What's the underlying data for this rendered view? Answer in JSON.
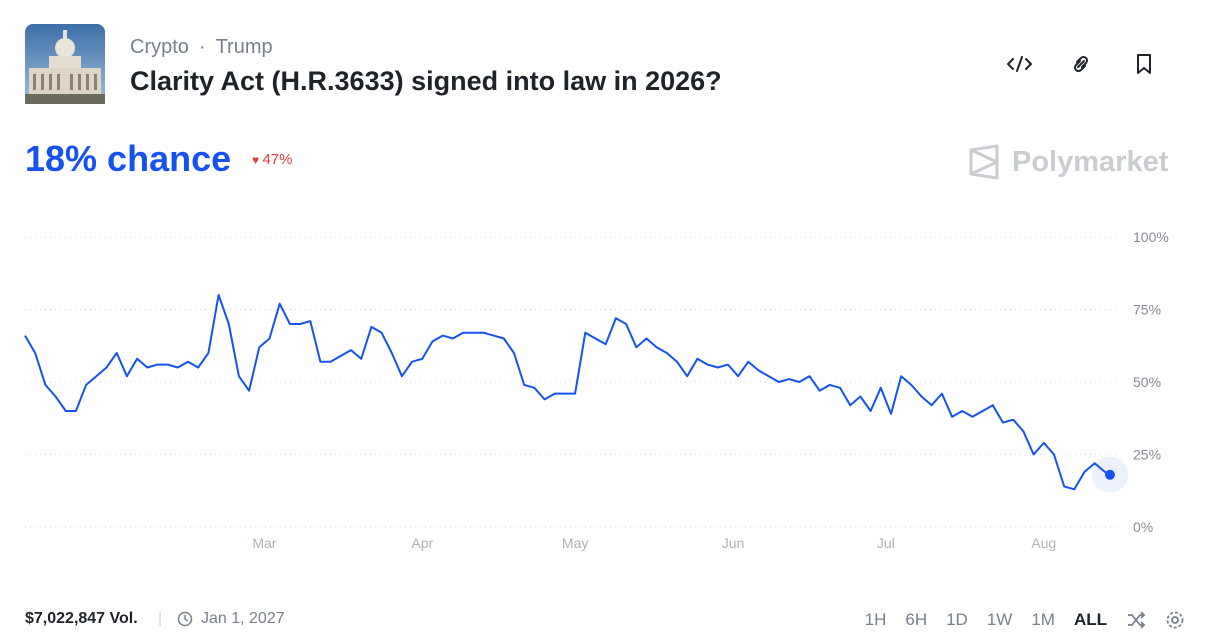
{
  "header": {
    "breadcrumbs": [
      "Crypto",
      "Trump"
    ],
    "title": "Clarity Act (H.R.3633) signed into law in 2026?"
  },
  "chance": {
    "label": "18% chance",
    "change": "47%"
  },
  "brand": "Polymarket",
  "chart_data": {
    "type": "line",
    "x": [
      13,
      15,
      17,
      19,
      21,
      23,
      25,
      27,
      29,
      31,
      33,
      35,
      37,
      39,
      41,
      43,
      45,
      47,
      49,
      51,
      53,
      55,
      57,
      59,
      61,
      63,
      65,
      67,
      69,
      71,
      73,
      75,
      77,
      79,
      81,
      83,
      85,
      87,
      89,
      91,
      93,
      95,
      97,
      99,
      101,
      103,
      105,
      107,
      109,
      111,
      113,
      115,
      117,
      119,
      121,
      123,
      125,
      127,
      129,
      131,
      133,
      135,
      137,
      139,
      141,
      143,
      145,
      147,
      149,
      151,
      153,
      155,
      157,
      159,
      161,
      163,
      165,
      167,
      169,
      171,
      173,
      175,
      177,
      179,
      181,
      183,
      185,
      187,
      189,
      191,
      193,
      195,
      197,
      199,
      201,
      203,
      205,
      207,
      209,
      211,
      213,
      215,
      217,
      219,
      221,
      223,
      225,
      226
    ],
    "series": [
      {
        "color": "#1652f0",
        "values": [
          66,
          60,
          49,
          45,
          40,
          40,
          49,
          52,
          55,
          60,
          52,
          58,
          55,
          56,
          56,
          55,
          57,
          55,
          60,
          80,
          70,
          52,
          47,
          62,
          65,
          77,
          70,
          70,
          71,
          57,
          57,
          59,
          61,
          58,
          69,
          67,
          60,
          52,
          57,
          58,
          64,
          66,
          65,
          67,
          67,
          67,
          66,
          65,
          60,
          49,
          48,
          44,
          46,
          46,
          46,
          67,
          65,
          63,
          72,
          70,
          62,
          65,
          62,
          60,
          57,
          52,
          58,
          56,
          55,
          56,
          52,
          57,
          54,
          52,
          50,
          51,
          50,
          52,
          47,
          49,
          48,
          42,
          45,
          40,
          48,
          39,
          52,
          49,
          45,
          42,
          46,
          38,
          40,
          38,
          40,
          42,
          36,
          37,
          33,
          25,
          29,
          25,
          14,
          13,
          19,
          22,
          19,
          18
        ]
      }
    ],
    "xlim": [
      13,
      226
    ],
    "xticks": [
      {
        "value": 60,
        "label": "Mar"
      },
      {
        "value": 91,
        "label": "Apr"
      },
      {
        "value": 121,
        "label": "May"
      },
      {
        "value": 152,
        "label": "Jun"
      },
      {
        "value": 182,
        "label": "Jul"
      },
      {
        "value": 213,
        "label": "Aug"
      }
    ],
    "ylim": [
      0,
      100
    ],
    "yticks": [
      {
        "value": 0,
        "label": "0%"
      },
      {
        "value": 25,
        "label": "25%"
      },
      {
        "value": 50,
        "label": "50%"
      },
      {
        "value": 75,
        "label": "75%"
      },
      {
        "value": 100,
        "label": "100%"
      }
    ],
    "grid": true
  },
  "footer": {
    "volume": "$7,022,847 Vol.",
    "end_date": "Jan 1, 2027",
    "ranges": [
      "1H",
      "6H",
      "1D",
      "1W",
      "1M",
      "ALL"
    ],
    "active_range": "ALL"
  }
}
